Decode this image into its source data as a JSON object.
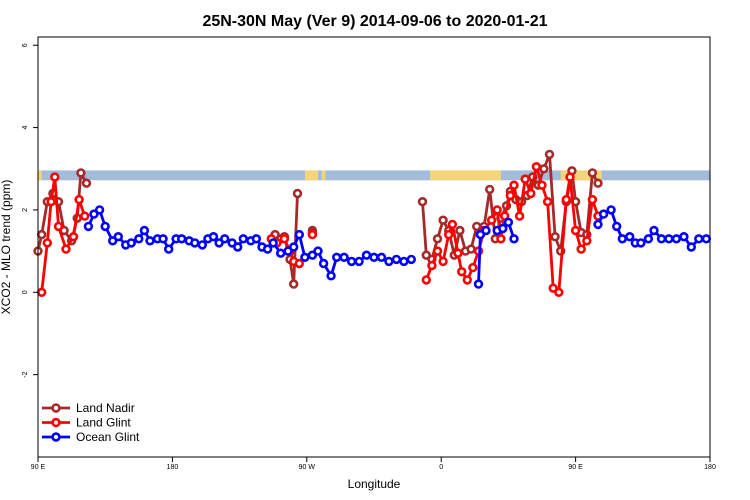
{
  "chart_data": {
    "type": "line",
    "title": "25N-30N May (Ver 9)   2014-09-06 to 2020-01-21",
    "xlabel": "Longitude",
    "ylabel": "XCO2 - MLO trend (ppm)",
    "xlim": [
      -90,
      270
    ],
    "ylim": [
      -4,
      6.2
    ],
    "x_ticks": [
      {
        "value": -90,
        "label": "90 E"
      },
      {
        "value": -18,
        "label": "180"
      },
      {
        "value": 54,
        "label": "90 W"
      },
      {
        "value": 126,
        "label": "0"
      },
      {
        "value": 198,
        "label": "90 E"
      },
      {
        "value": 270,
        "label": "180"
      }
    ],
    "y_ticks": [
      {
        "value": -2,
        "label": "-2"
      },
      {
        "value": 0,
        "label": "0"
      },
      {
        "value": 2,
        "label": "2"
      },
      {
        "value": 4,
        "label": "4"
      },
      {
        "value": 6,
        "label": "6"
      }
    ],
    "band": {
      "y_range": [
        2.72,
        2.96
      ],
      "ocean_color": "#a3bcd9",
      "land_color": "#f5d57a",
      "land_x_ranges": [
        [
          -90,
          -88
        ],
        [
          53,
          60
        ],
        [
          62,
          64
        ],
        [
          120,
          158
        ],
        [
          190,
          212
        ]
      ]
    },
    "legend": {
      "position": "bottom-left"
    },
    "series": [
      {
        "name": "Land Nadir",
        "color": "#a52a2a",
        "segments": [
          [
            [
              -90,
              1.0
            ],
            [
              -88,
              1.4
            ],
            [
              -85,
              2.2
            ],
            [
              -82,
              2.4
            ],
            [
              -79,
              2.2
            ],
            [
              -76,
              1.5
            ],
            [
              -72,
              1.25
            ],
            [
              -69,
              1.8
            ],
            [
              -67,
              2.9
            ],
            [
              -64,
              2.65
            ]
          ],
          [
            [
              37,
              1.4
            ],
            [
              40,
              1.3
            ],
            [
              42,
              1.35
            ],
            [
              45,
              0.8
            ],
            [
              47,
              0.2
            ],
            [
              49,
              2.4
            ]
          ],
          [
            [
              57,
              1.5
            ],
            [
              57,
              1.45
            ]
          ],
          [
            [
              116,
              2.2
            ],
            [
              118,
              0.9
            ],
            [
              121,
              0.8
            ],
            [
              124,
              1.3
            ],
            [
              127,
              1.75
            ],
            [
              130,
              1.5
            ],
            [
              133,
              0.9
            ],
            [
              136,
              1.5
            ],
            [
              139,
              1.0
            ],
            [
              142,
              1.05
            ],
            [
              145,
              1.6
            ],
            [
              149,
              1.6
            ],
            [
              152,
              2.5
            ],
            [
              155,
              1.3
            ],
            [
              158,
              1.8
            ],
            [
              161,
              2.1
            ],
            [
              163,
              2.45
            ],
            [
              166,
              2.25
            ],
            [
              169,
              2.2
            ],
            [
              172,
              2.35
            ],
            [
              175,
              2.8
            ],
            [
              178,
              2.6
            ],
            [
              181,
              3.0
            ],
            [
              184,
              3.35
            ],
            [
              187,
              1.35
            ],
            [
              190,
              1.0
            ],
            [
              193,
              2.2
            ],
            [
              196,
              2.95
            ],
            [
              198,
              2.2
            ],
            [
              201,
              1.45
            ],
            [
              204,
              1.4
            ],
            [
              207,
              2.9
            ],
            [
              210,
              2.65
            ]
          ]
        ]
      },
      {
        "name": "Land Glint",
        "color": "#ff0000",
        "segments": [
          [
            [
              -88,
              0.0
            ],
            [
              -85,
              1.2
            ],
            [
              -83,
              2.2
            ],
            [
              -81,
              2.8
            ],
            [
              -79,
              1.6
            ],
            [
              -75,
              1.05
            ],
            [
              -71,
              1.35
            ],
            [
              -68,
              2.25
            ],
            [
              -65,
              1.85
            ]
          ],
          [
            [
              35,
              1.3
            ],
            [
              38,
              1.2
            ],
            [
              42,
              1.3
            ],
            [
              45,
              1.0
            ],
            [
              47,
              0.75
            ],
            [
              50,
              0.7
            ]
          ],
          [
            [
              57,
              1.4
            ]
          ],
          [
            [
              118,
              0.3
            ],
            [
              121,
              0.65
            ],
            [
              124,
              1.0
            ],
            [
              127,
              0.75
            ],
            [
              130,
              1.4
            ],
            [
              132,
              1.65
            ],
            [
              135,
              0.95
            ],
            [
              137,
              0.5
            ],
            [
              140,
              0.3
            ],
            [
              143,
              0.6
            ],
            [
              146,
              1.0
            ],
            [
              149,
              1.5
            ],
            [
              153,
              1.75
            ],
            [
              156,
              2.0
            ],
            [
              158,
              1.3
            ],
            [
              160,
              1.85
            ],
            [
              163,
              2.35
            ],
            [
              165,
              2.6
            ],
            [
              168,
              1.85
            ],
            [
              171,
              2.75
            ],
            [
              174,
              2.4
            ],
            [
              177,
              3.05
            ],
            [
              180,
              2.6
            ],
            [
              183,
              2.2
            ],
            [
              186,
              0.1
            ],
            [
              189,
              0.0
            ],
            [
              193,
              2.25
            ],
            [
              195,
              2.8
            ],
            [
              198,
              1.5
            ],
            [
              201,
              1.05
            ],
            [
              204,
              1.25
            ],
            [
              207,
              2.25
            ],
            [
              210,
              1.85
            ]
          ]
        ]
      },
      {
        "name": "Ocean Glint",
        "color": "#0000ff",
        "segments": [
          [
            [
              -63,
              1.6
            ],
            [
              -60,
              1.9
            ],
            [
              -57,
              2.0
            ],
            [
              -54,
              1.6
            ],
            [
              -50,
              1.25
            ],
            [
              -47,
              1.35
            ],
            [
              -43,
              1.15
            ],
            [
              -40,
              1.2
            ],
            [
              -36,
              1.3
            ],
            [
              -33,
              1.5
            ],
            [
              -30,
              1.25
            ],
            [
              -26,
              1.3
            ],
            [
              -23,
              1.3
            ],
            [
              -20,
              1.05
            ],
            [
              -16,
              1.3
            ],
            [
              -13,
              1.3
            ],
            [
              -9,
              1.25
            ],
            [
              -6,
              1.2
            ],
            [
              -2,
              1.15
            ],
            [
              1,
              1.3
            ],
            [
              4,
              1.35
            ],
            [
              7,
              1.2
            ],
            [
              10,
              1.3
            ],
            [
              14,
              1.2
            ],
            [
              17,
              1.1
            ],
            [
              20,
              1.3
            ],
            [
              24,
              1.25
            ],
            [
              27,
              1.3
            ],
            [
              30,
              1.1
            ],
            [
              33,
              1.05
            ],
            [
              36,
              1.2
            ],
            [
              40,
              0.95
            ],
            [
              44,
              1.0
            ],
            [
              47,
              1.1
            ],
            [
              50,
              1.4
            ],
            [
              53,
              0.85
            ],
            [
              57,
              0.9
            ],
            [
              60,
              1.0
            ],
            [
              63,
              0.7
            ],
            [
              67,
              0.4
            ],
            [
              70,
              0.85
            ],
            [
              74,
              0.85
            ],
            [
              78,
              0.75
            ],
            [
              82,
              0.75
            ],
            [
              86,
              0.9
            ],
            [
              90,
              0.85
            ],
            [
              94,
              0.85
            ],
            [
              98,
              0.75
            ],
            [
              102,
              0.8
            ],
            [
              106,
              0.75
            ],
            [
              110,
              0.8
            ]
          ],
          [
            [
              146,
              0.2
            ],
            [
              147,
              1.4
            ],
            [
              150,
              1.5
            ]
          ],
          [
            [
              156,
              1.5
            ],
            [
              159,
              1.55
            ],
            [
              162,
              1.7
            ],
            [
              165,
              1.3
            ]
          ],
          [
            [
              210,
              1.65
            ],
            [
              213,
              1.9
            ],
            [
              217,
              2.0
            ],
            [
              220,
              1.6
            ],
            [
              223,
              1.3
            ],
            [
              227,
              1.35
            ],
            [
              230,
              1.2
            ],
            [
              233,
              1.2
            ],
            [
              237,
              1.3
            ],
            [
              240,
              1.5
            ],
            [
              244,
              1.3
            ],
            [
              248,
              1.3
            ],
            [
              252,
              1.3
            ],
            [
              256,
              1.35
            ],
            [
              260,
              1.1
            ],
            [
              264,
              1.3
            ],
            [
              268,
              1.3
            ]
          ]
        ]
      }
    ]
  }
}
